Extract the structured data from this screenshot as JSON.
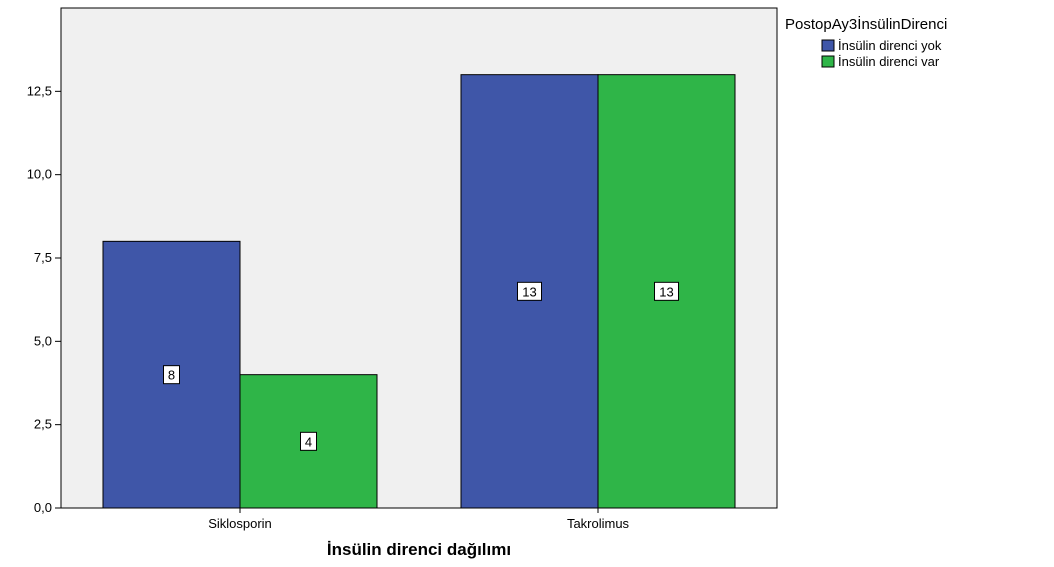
{
  "chart_data": {
    "type": "bar",
    "categories": [
      "Siklosporin",
      "Takrolimus"
    ],
    "series": [
      {
        "name": "İnsülin direnci yok",
        "values": [
          8,
          13
        ],
        "color": "#3f56a8"
      },
      {
        "name": "İnsülin direnci var",
        "values": [
          4,
          13
        ],
        "color": "#2fb548"
      }
    ],
    "title": "",
    "xlabel": "İnsülin direnci dağılımı",
    "ylabel": "",
    "ylim": [
      0,
      15
    ],
    "yticks": [
      "0,0",
      "2,5",
      "5,0",
      "7,5",
      "10,0",
      "12,5"
    ],
    "ytick_values": [
      0,
      2.5,
      5,
      7.5,
      10,
      12.5
    ],
    "grid": false,
    "legend": {
      "title": "PostopAy3İnsülinDirenci",
      "placement": "top-right, outside plot"
    },
    "plot_background": "#f0f0f0"
  }
}
